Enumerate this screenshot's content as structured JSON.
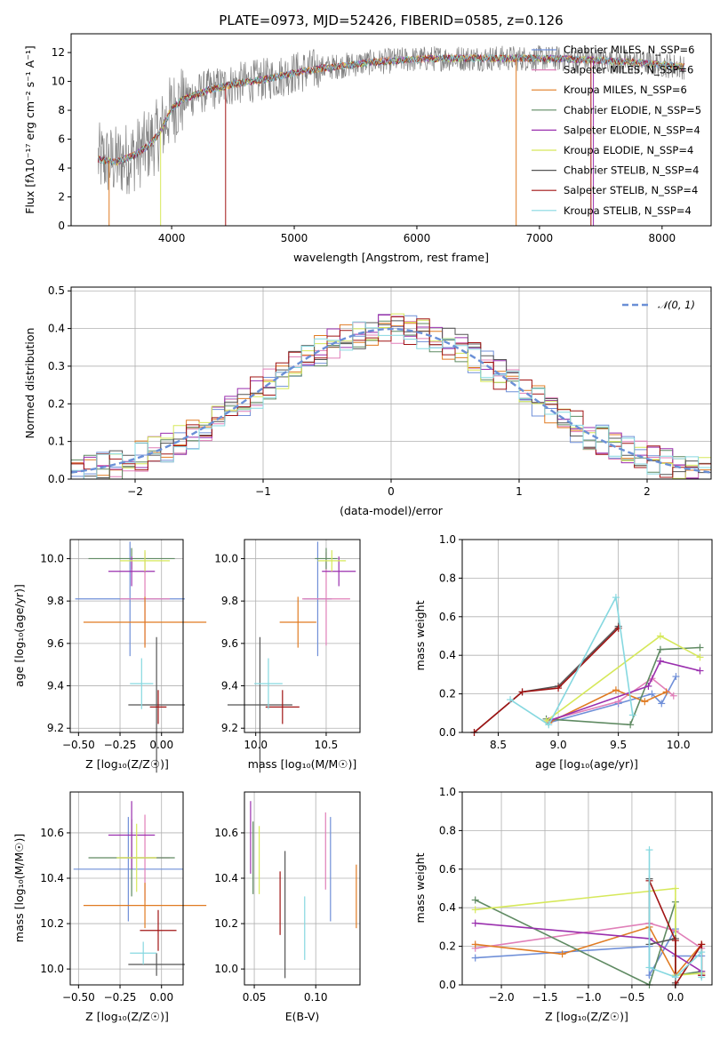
{
  "chart_data": [
    {
      "id": "spectrum",
      "type": "line",
      "title": "PLATE=0973, MJD=52426, FIBERID=0585, z=0.126",
      "xlabel": "wavelength [Angstrom, rest frame]",
      "ylabel": "Flux [fλ10⁻¹⁷ erg cm⁻² s⁻¹ A⁻¹]",
      "xlim": [
        3180,
        8400
      ],
      "ylim": [
        0,
        13.3
      ],
      "xticks": [
        "4000",
        "5000",
        "6000",
        "7000",
        "8000"
      ],
      "yticks": [
        "0",
        "2",
        "4",
        "6",
        "8",
        "10",
        "12"
      ],
      "grid": false,
      "legend_position": "upper-right",
      "series": [
        {
          "name": "Chabrier MILES, N_SSP=6",
          "color": "#6f8fd8"
        },
        {
          "name": "Salpeter MILES, N_SSP=6",
          "color": "#e07fb8"
        },
        {
          "name": "Kroupa MILES, N_SSP=6",
          "color": "#e07b22"
        },
        {
          "name": "Chabrier ELODIE, N_SSP=5",
          "color": "#5f8a62"
        },
        {
          "name": "Salpeter ELODIE, N_SSP=4",
          "color": "#9a2fae"
        },
        {
          "name": "Kroupa ELODIE, N_SSP=4",
          "color": "#d6e85a"
        },
        {
          "name": "Chabrier STELIB, N_SSP=4",
          "color": "#555555"
        },
        {
          "name": "Salpeter STELIB, N_SSP=4",
          "color": "#a01414"
        },
        {
          "name": "Kroupa STELIB, N_SSP=4",
          "color": "#86d8e0"
        }
      ],
      "continuum": {
        "x": [
          3400,
          3550,
          3700,
          3800,
          3900,
          4000,
          4100,
          4300,
          4500,
          4800,
          5000,
          5300,
          5600,
          5900,
          6200,
          6600,
          7000,
          7400,
          7800,
          8200
        ],
        "y": [
          4.6,
          4.4,
          4.9,
          5.5,
          6.4,
          8.1,
          8.8,
          9.4,
          9.8,
          10.2,
          10.6,
          11.0,
          11.3,
          11.5,
          11.6,
          11.6,
          11.6,
          11.5,
          11.3,
          11.0
        ]
      }
    },
    {
      "id": "residuals",
      "type": "step",
      "xlabel": "(data-model)/error",
      "ylabel": "Normed distribution",
      "xlim": [
        -2.5,
        2.5
      ],
      "ylim": [
        0,
        0.51
      ],
      "xticks": [
        "−2",
        "−1",
        "0",
        "1",
        "2"
      ],
      "yticks": [
        "0.0",
        "0.1",
        "0.2",
        "0.3",
        "0.4",
        "0.5"
      ],
      "grid": true,
      "legend_position": "upper-right",
      "legend": [
        "𝒩(0, 1)"
      ],
      "bin_width": 0.1
    },
    {
      "id": "age-vs-Z",
      "type": "scatter",
      "xlabel": "Z [log₁₀(Z/Z☉)]",
      "ylabel": "age  [log₁₀(age/yr)]",
      "xlim": [
        -0.55,
        0.13
      ],
      "ylim": [
        9.18,
        10.09
      ],
      "xticks": [
        "−0.50",
        "−0.25",
        "0.00"
      ],
      "yticks": [
        "9.2",
        "9.4",
        "9.6",
        "9.8",
        "10.0"
      ],
      "grid": true,
      "points": [
        {
          "color": "#6f8fd8",
          "x": -0.19,
          "y": 9.81,
          "xerr": 0.33,
          "yerr": 0.27
        },
        {
          "color": "#e07fb8",
          "x": -0.1,
          "y": 9.81,
          "xerr": 0.15,
          "yerr": 0.22
        },
        {
          "color": "#e07b22",
          "x": -0.1,
          "y": 9.7,
          "xerr": 0.37,
          "yerr": 0.12
        },
        {
          "color": "#5f8a62",
          "x": -0.18,
          "y": 10.0,
          "xerr": 0.26,
          "yerr": 0.05
        },
        {
          "color": "#9a2fae",
          "x": -0.18,
          "y": 9.94,
          "xerr": 0.14,
          "yerr": 0.07
        },
        {
          "color": "#d6e85a",
          "x": -0.1,
          "y": 9.99,
          "xerr": 0.15,
          "yerr": 0.05
        },
        {
          "color": "#555555",
          "x": -0.03,
          "y": 9.31,
          "xerr": 0.17,
          "yerr": 0.32
        },
        {
          "color": "#a01414",
          "x": -0.02,
          "y": 9.3,
          "xerr": 0.05,
          "yerr": 0.08
        },
        {
          "color": "#86d8e0",
          "x": -0.12,
          "y": 9.41,
          "xerr": 0.07,
          "yerr": 0.12
        }
      ]
    },
    {
      "id": "age-vs-mass",
      "type": "scatter",
      "xlabel": "mass [log₁₀(M/M☉)]",
      "ylabel": "",
      "xlim": [
        9.92,
        10.74
      ],
      "ylim": [
        9.18,
        10.09
      ],
      "xticks": [
        "10.0",
        "10.5"
      ],
      "yticks": [
        "9.2",
        "9.4",
        "9.6",
        "9.8",
        "10.0"
      ],
      "grid": true,
      "points": [
        {
          "color": "#6f8fd8",
          "x": 10.44,
          "y": 9.81,
          "xerr": 0.1,
          "yerr": 0.27
        },
        {
          "color": "#e07fb8",
          "x": 10.5,
          "y": 9.81,
          "xerr": 0.17,
          "yerr": 0.22
        },
        {
          "color": "#e07b22",
          "x": 10.3,
          "y": 9.7,
          "xerr": 0.13,
          "yerr": 0.12
        },
        {
          "color": "#5f8a62",
          "x": 10.5,
          "y": 10.0,
          "xerr": 0.08,
          "yerr": 0.05
        },
        {
          "color": "#9a2fae",
          "x": 10.59,
          "y": 9.94,
          "xerr": 0.12,
          "yerr": 0.07
        },
        {
          "color": "#d6e85a",
          "x": 10.54,
          "y": 9.99,
          "xerr": 0.1,
          "yerr": 0.05
        },
        {
          "color": "#555555",
          "x": 10.03,
          "y": 9.31,
          "xerr": 0.23,
          "yerr": 0.32
        },
        {
          "color": "#a01414",
          "x": 10.19,
          "y": 9.3,
          "xerr": 0.12,
          "yerr": 0.08
        },
        {
          "color": "#86d8e0",
          "x": 10.09,
          "y": 9.41,
          "xerr": 0.1,
          "yerr": 0.12
        }
      ]
    },
    {
      "id": "mass-weight-vs-age",
      "type": "line",
      "xlabel": "age  [log₁₀(age/yr)]",
      "ylabel": "mass weight",
      "xlim": [
        8.2,
        10.28
      ],
      "ylim": [
        0,
        1.0
      ],
      "xticks": [
        "8.5",
        "9.0",
        "9.5",
        "10.0"
      ],
      "yticks": [
        "0.0",
        "0.2",
        "0.4",
        "0.6",
        "0.8",
        "1.0"
      ],
      "grid": true,
      "series": [
        {
          "color": "#6f8fd8",
          "x": [
            8.92,
            9.5,
            9.78,
            9.86,
            9.98
          ],
          "y": [
            0.05,
            0.15,
            0.2,
            0.15,
            0.29
          ]
        },
        {
          "color": "#e07fb8",
          "x": [
            8.9,
            9.5,
            9.78,
            9.96
          ],
          "y": [
            0.06,
            0.16,
            0.28,
            0.19
          ]
        },
        {
          "color": "#e07b22",
          "x": [
            8.92,
            9.48,
            9.72,
            9.9
          ],
          "y": [
            0.05,
            0.22,
            0.16,
            0.21
          ]
        },
        {
          "color": "#5f8a62",
          "x": [
            8.9,
            9.6,
            9.85,
            10.18
          ],
          "y": [
            0.07,
            0.04,
            0.43,
            0.44
          ]
        },
        {
          "color": "#9a2fae",
          "x": [
            8.92,
            9.75,
            9.85,
            10.18
          ],
          "y": [
            0.06,
            0.24,
            0.37,
            0.32
          ]
        },
        {
          "color": "#d6e85a",
          "x": [
            8.9,
            9.85,
            10.18
          ],
          "y": [
            0.06,
            0.5,
            0.39
          ]
        },
        {
          "color": "#555555",
          "x": [
            8.3,
            8.7,
            9.0,
            9.5
          ],
          "y": [
            0.0,
            0.21,
            0.24,
            0.55
          ]
        },
        {
          "color": "#a01414",
          "x": [
            8.3,
            8.7,
            9.0,
            9.5
          ],
          "y": [
            0.0,
            0.21,
            0.23,
            0.54
          ]
        },
        {
          "color": "#86d8e0",
          "x": [
            8.6,
            8.92,
            9.48,
            9.62
          ],
          "y": [
            0.17,
            0.04,
            0.7,
            0.09
          ]
        }
      ]
    },
    {
      "id": "mass-vs-Z",
      "type": "scatter",
      "xlabel": "Z [log₁₀(Z/Z☉)]",
      "ylabel": "mass [log₁₀(M/M☉)]",
      "xlim": [
        -0.55,
        0.13
      ],
      "ylim": [
        9.93,
        10.78
      ],
      "xticks": [
        "−0.50",
        "−0.25",
        "0.00"
      ],
      "yticks": [
        "10.0",
        "10.2",
        "10.4",
        "10.6"
      ],
      "grid": true,
      "points": [
        {
          "color": "#6f8fd8",
          "x": -0.2,
          "y": 10.44,
          "xerr": 0.33,
          "yerr": 0.23
        },
        {
          "color": "#e07fb8",
          "x": -0.1,
          "y": 10.49,
          "xerr": 0.15,
          "yerr": 0.19
        },
        {
          "color": "#e07b22",
          "x": -0.1,
          "y": 10.28,
          "xerr": 0.37,
          "yerr": 0.1
        },
        {
          "color": "#5f8a62",
          "x": -0.18,
          "y": 10.49,
          "xerr": 0.26,
          "yerr": 0.17
        },
        {
          "color": "#9a2fae",
          "x": -0.18,
          "y": 10.59,
          "xerr": 0.14,
          "yerr": 0.15
        },
        {
          "color": "#d6e85a",
          "x": -0.15,
          "y": 10.49,
          "xerr": 0.12,
          "yerr": 0.15
        },
        {
          "color": "#555555",
          "x": -0.03,
          "y": 10.02,
          "xerr": 0.17,
          "yerr": 0.05
        },
        {
          "color": "#a01414",
          "x": -0.02,
          "y": 10.17,
          "xerr": 0.11,
          "yerr": 0.09
        },
        {
          "color": "#86d8e0",
          "x": -0.11,
          "y": 10.07,
          "xerr": 0.08,
          "yerr": 0.05
        }
      ]
    },
    {
      "id": "mass-vs-ebv",
      "type": "errorbar",
      "xlabel": "E(B-V)",
      "ylabel": "",
      "xlim": [
        0.042,
        0.136
      ],
      "ylim": [
        9.93,
        10.78
      ],
      "xticks": [
        "0.05",
        "0.10"
      ],
      "yticks": [
        "10.0",
        "10.2",
        "10.4",
        "10.6"
      ],
      "grid": true,
      "points": [
        {
          "color": "#9a2fae",
          "x": 0.047,
          "y": 10.58,
          "yerr": 0.16
        },
        {
          "color": "#5f8a62",
          "x": 0.049,
          "y": 10.49,
          "yerr": 0.16
        },
        {
          "color": "#d6e85a",
          "x": 0.054,
          "y": 10.48,
          "yerr": 0.15
        },
        {
          "color": "#a01414",
          "x": 0.071,
          "y": 10.29,
          "yerr": 0.14
        },
        {
          "color": "#555555",
          "x": 0.075,
          "y": 10.24,
          "yerr": 0.28
        },
        {
          "color": "#86d8e0",
          "x": 0.091,
          "y": 10.18,
          "yerr": 0.14
        },
        {
          "color": "#e07fb8",
          "x": 0.108,
          "y": 10.52,
          "yerr": 0.17
        },
        {
          "color": "#6f8fd8",
          "x": 0.112,
          "y": 10.44,
          "yerr": 0.23
        },
        {
          "color": "#e07b22",
          "x": 0.133,
          "y": 10.32,
          "yerr": 0.14
        }
      ]
    },
    {
      "id": "mass-weight-vs-Z",
      "type": "line",
      "xlabel": "Z [log₁₀(Z/Z☉)]",
      "ylabel": "mass weight",
      "xlim": [
        -2.45,
        0.42
      ],
      "ylim": [
        0,
        1.0
      ],
      "xticks": [
        "−2.0",
        "−1.5",
        "−1.0",
        "−0.5",
        "0.0"
      ],
      "yticks": [
        "0.0",
        "0.2",
        "0.4",
        "0.6",
        "0.8",
        "1.0"
      ],
      "grid": true,
      "series": [
        {
          "color": "#6f8fd8",
          "x": [
            -2.3,
            -0.3,
            -0.3,
            0.0,
            0.0,
            0.3,
            0.3
          ],
          "y": [
            0.14,
            0.2,
            0.05,
            0.29,
            0.15,
            0.15,
            0.05
          ]
        },
        {
          "color": "#e07fb8",
          "x": [
            -2.3,
            -0.3,
            0.0,
            0.3,
            0.3
          ],
          "y": [
            0.19,
            0.32,
            0.28,
            0.19,
            0.06
          ]
        },
        {
          "color": "#e07b22",
          "x": [
            -2.3,
            -1.3,
            -0.3,
            0.0,
            0.3,
            0.3
          ],
          "y": [
            0.21,
            0.16,
            0.3,
            0.05,
            0.21,
            0.05
          ]
        },
        {
          "color": "#5f8a62",
          "x": [
            -2.3,
            -0.3,
            0.0,
            0.0,
            0.3
          ],
          "y": [
            0.44,
            0.0,
            0.43,
            0.05,
            0.07
          ]
        },
        {
          "color": "#9a2fae",
          "x": [
            -2.3,
            -0.3,
            0.3,
            0.3
          ],
          "y": [
            0.32,
            0.24,
            0.07,
            0.05
          ]
        },
        {
          "color": "#d6e85a",
          "x": [
            -2.3,
            0.0,
            0.0,
            0.3
          ],
          "y": [
            0.39,
            0.5,
            0.05,
            0.06
          ]
        },
        {
          "color": "#555555",
          "x": [
            -0.3,
            -0.3,
            0.0,
            0.0
          ],
          "y": [
            0.55,
            0.21,
            0.24,
            0.01
          ]
        },
        {
          "color": "#a01414",
          "x": [
            -0.3,
            0.0,
            0.0,
            0.3,
            0.3
          ],
          "y": [
            0.54,
            0.23,
            0.0,
            0.21,
            0.05
          ]
        },
        {
          "color": "#86d8e0",
          "x": [
            -0.3,
            -0.3,
            0.0,
            0.3,
            0.3
          ],
          "y": [
            0.7,
            0.09,
            0.04,
            0.17,
            0.04
          ]
        }
      ]
    }
  ]
}
